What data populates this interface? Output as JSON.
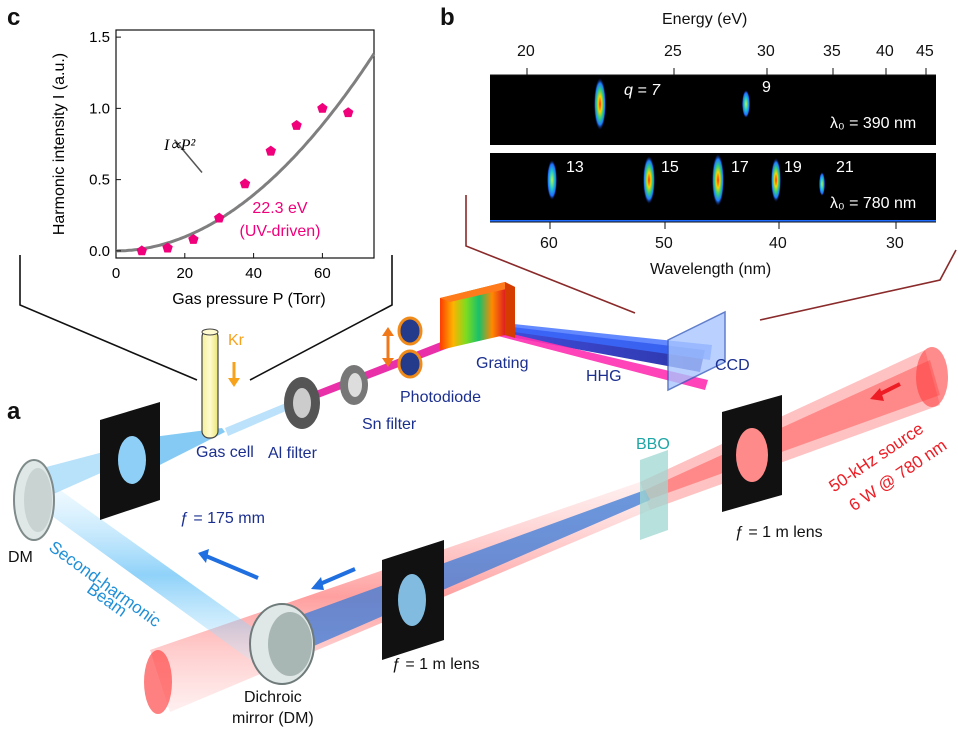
{
  "panels": {
    "a": "a",
    "b": "b",
    "c": "c"
  },
  "colors": {
    "red": "#ee1c24",
    "blue": "#1f6fe0",
    "light_blue": "#7ec9f5",
    "pink": "#f0007a",
    "gray_curve": "#7f7f7f",
    "navy_text": "#1b2f8f",
    "teal_text": "#1ea6a6",
    "orange": "#f7a21b"
  },
  "labels": {
    "gas_cell": "Gas cell",
    "kr": "Kr",
    "al_filter": "Al filter",
    "sn_filter": "Sn filter",
    "photodiode": "Photodiode",
    "grating": "Grating",
    "hhg": "HHG",
    "ccd": "CCD",
    "bbo": "BBO",
    "f175": "ƒ = 175 mm",
    "f1_right": "ƒ = 1 m lens",
    "f1_bottom": "ƒ = 1 m lens",
    "dm": "DM",
    "dichroic_line1": "Dichroic",
    "dichroic_line2": "mirror (DM)",
    "shg_line1": "Second-harmonic",
    "shg_line2": "Beam",
    "source_line1": "50-kHz source",
    "source_line2": "6 W @ 780 nm"
  },
  "spectra": {
    "top_axis_label": "Energy (eV)",
    "top_ticks": [
      "20",
      "25",
      "30",
      "35",
      "40",
      "45"
    ],
    "bottom_axis_label": "Wavelength (nm)",
    "bottom_ticks": [
      "60",
      "50",
      "40",
      "30"
    ],
    "strip1_orders": [
      "q = 7",
      "9"
    ],
    "strip1_lambda": "λ₀ = 390 nm",
    "strip2_orders": [
      "13",
      "15",
      "17",
      "19",
      "21"
    ],
    "strip2_lambda": "λ₀ = 780 nm"
  },
  "chart_data": {
    "type": "scatter",
    "xlabel": "Gas pressure P (Torr)",
    "ylabel": "Harmonic intensity I (a.u.)",
    "xlim": [
      0,
      75
    ],
    "ylim": [
      -0.05,
      1.55
    ],
    "xticks": [
      "0",
      "20",
      "40",
      "60"
    ],
    "yticks": [
      "0.0",
      "0.5",
      "1.0",
      "1.5"
    ],
    "series": [
      {
        "name": "22.3 eV (UV-driven)",
        "x": [
          7.5,
          15,
          22.5,
          30,
          37.5,
          45,
          52.5,
          60,
          67.5
        ],
        "y": [
          0.0,
          0.02,
          0.08,
          0.23,
          0.47,
          0.7,
          0.88,
          1.0,
          0.97
        ]
      }
    ],
    "fit_label": "I∝P²",
    "fit_coefficient": 0.000246,
    "annotation_line1": "22.3 eV",
    "annotation_line2": "(UV-driven)",
    "grid": false
  }
}
